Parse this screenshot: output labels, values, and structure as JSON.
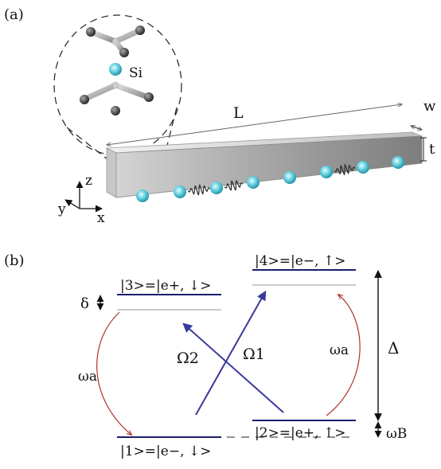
{
  "panel_a": {
    "label": "(a)",
    "atom_label": "Si",
    "length_label": "L",
    "width_label": "w",
    "thickness_label": "t",
    "axes": {
      "z": "z",
      "y": "y",
      "x": "x"
    },
    "colors": {
      "defect": "#44c7d6",
      "bar_light": "#e6e6e6",
      "bar_dark": "#8e8e8e"
    },
    "defect_count": 9,
    "phonon_count": 3
  },
  "panel_b": {
    "label": "(b)",
    "states": {
      "s1": "|1>=|e−, ↓>",
      "s2": "|2>=|e+, ↑>",
      "s3": "|3>=|e+, ↓>",
      "s4": "|4>=|e−, ↑>"
    },
    "delta_small": "δ",
    "omega_a_left": "ωa",
    "omega_a_right": "ωa",
    "omega_2": "Ω2",
    "omega_1": "Ω1",
    "big_delta": "Δ",
    "omega_b": "ωB",
    "colors": {
      "levels": "#1c1c6e",
      "drive": "#3a3a9a",
      "phonon": "#b03030"
    }
  }
}
